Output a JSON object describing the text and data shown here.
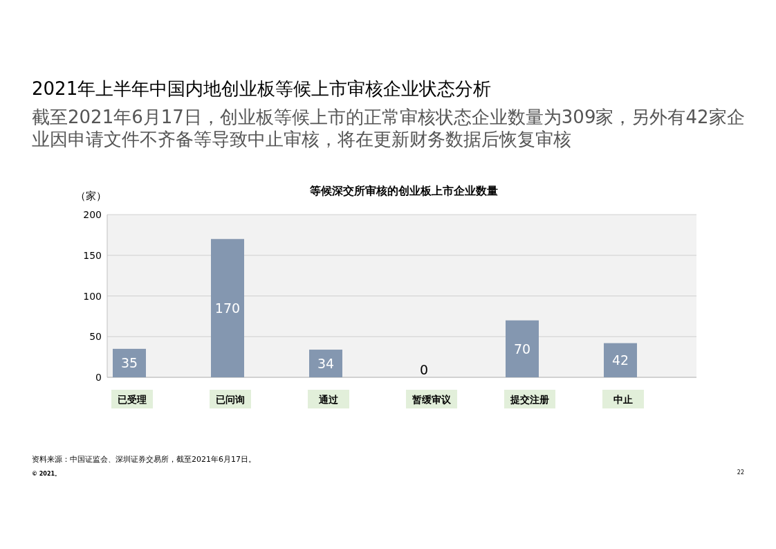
{
  "chart_data": {
    "type": "bar",
    "title": "2021年上半年中国内地创业板等候上市审核企业状态分析",
    "subtitle": "截至2021年6月17日，创业板等候上市的正常审核状态企业数量为309家，另外有42家企业因申请文件不齐备等导致中止审核，将在更新财务数据后恢复审核",
    "ylabel": "（家）",
    "categories": [
      "已受理",
      "已问询",
      "通过",
      "暂缓审议",
      "提交注册",
      "中止"
    ],
    "values": [
      35,
      170,
      34,
      0,
      70,
      42
    ],
    "color": "#8497b0",
    "ylim": [
      0,
      200
    ],
    "yticks": [
      0,
      50,
      100,
      150,
      200
    ],
    "grid": "y",
    "data_labels": true,
    "annotations": [
      "等候深交所审核的创业板上市企业数量",
      "资料来源：中国证监会、深圳证券交易所，截至2021年6月17日。",
      "© 2021。",
      "22"
    ]
  }
}
